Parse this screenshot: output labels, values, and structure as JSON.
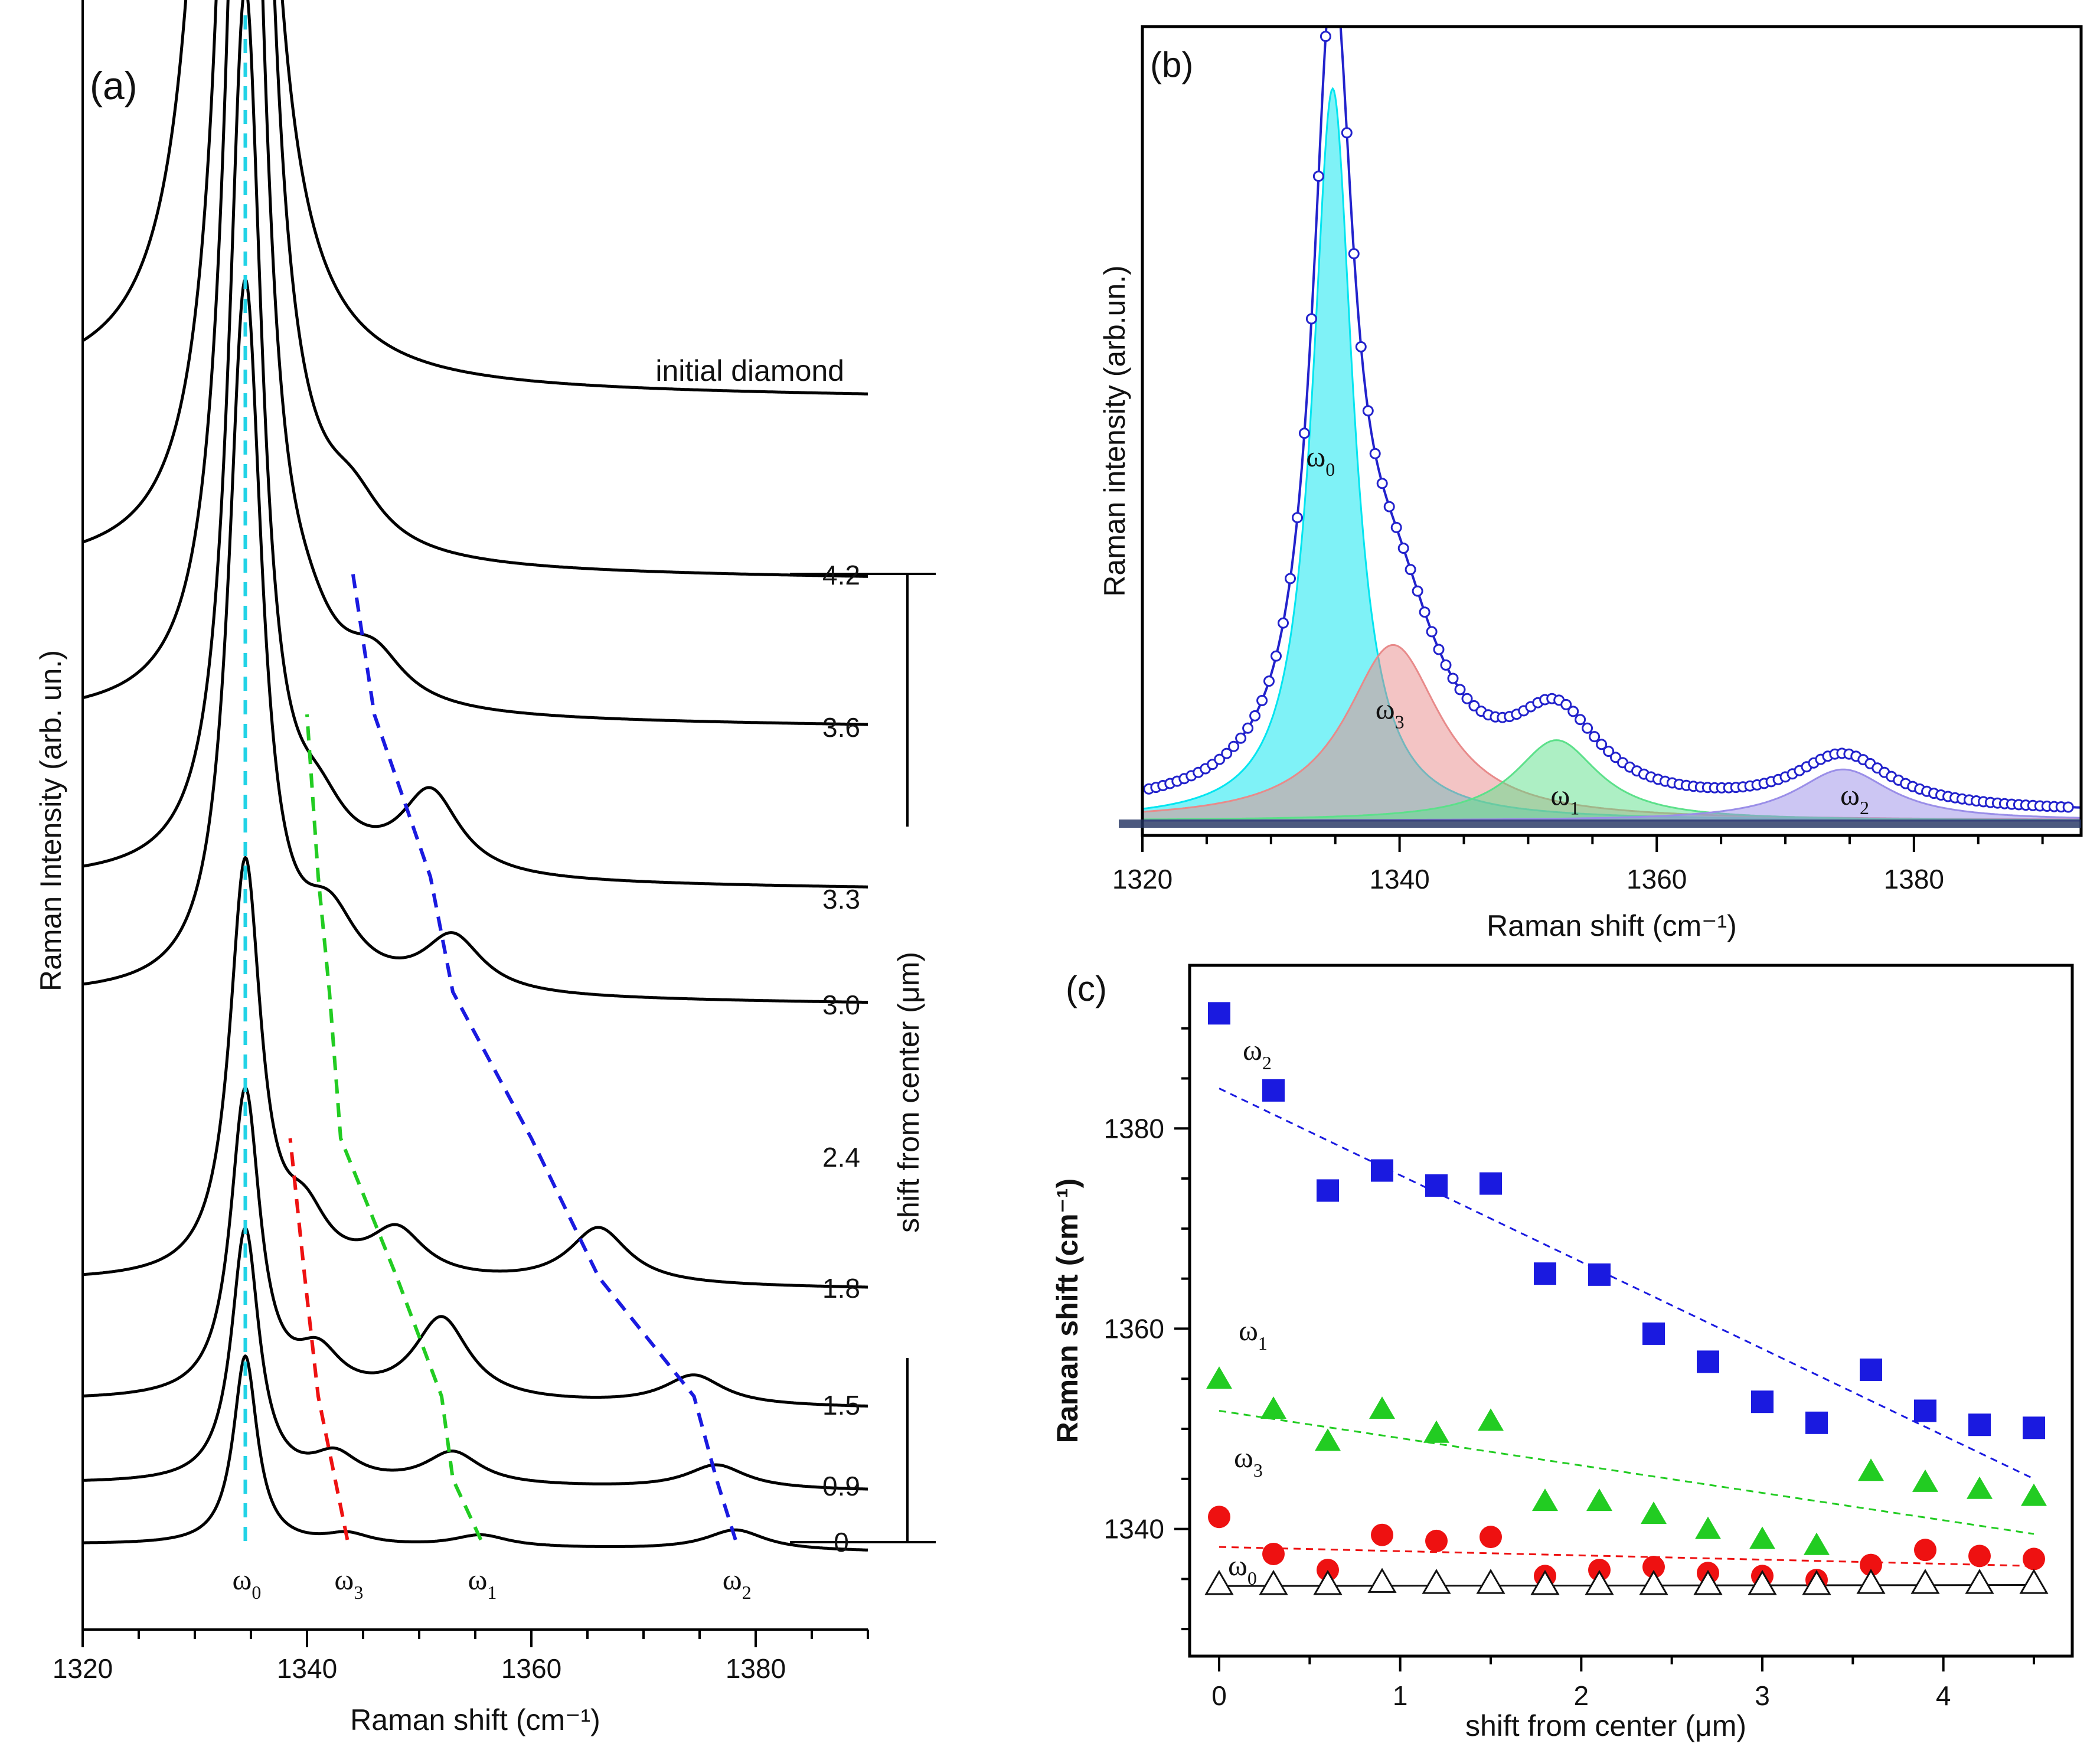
{
  "chart_data": [
    {
      "panel": "a",
      "type": "line",
      "label": "(a)",
      "xlabel": "Raman shift (cm⁻¹)",
      "ylabel": "Raman Intensity (arb. un.)",
      "xlim": [
        1320,
        1390
      ],
      "xticks": [
        1320,
        1340,
        1360,
        1380
      ],
      "right_axis_label": "shift from center (μm)",
      "reference_spectrum_label": "initial diamond",
      "peak_labels": [
        "ω0",
        "ω3",
        "ω1",
        "ω2"
      ],
      "series": [
        {
          "name": "0",
          "omega0": 1334.5,
          "omega3": 1343.6,
          "omega1": 1355.5,
          "omega2": 1378.2
        },
        {
          "name": "0.9",
          "omega0": 1334.5,
          "omega3": 1342.5,
          "omega1": 1353.0,
          "omega2": 1376.5
        },
        {
          "name": "1.5",
          "omega0": 1334.5,
          "omega3": 1341.0,
          "omega1": 1352.0,
          "omega2": 1374.5
        },
        {
          "name": "1.8",
          "omega0": 1334.5,
          "omega3": 1339.8,
          "omega1": 1348.0,
          "omega2": 1366.0
        },
        {
          "name": "2.4",
          "omega0": 1334.5,
          "omega3": 1338.5,
          "omega1": 1343.0,
          "omega2": 1360.0
        },
        {
          "name": "3.0",
          "omega0": 1334.5,
          "omega1": 1342.0,
          "omega2": 1353.0
        },
        {
          "name": "3.3",
          "omega0": 1334.5,
          "omega1": 1341.0,
          "omega2": 1351.0
        },
        {
          "name": "3.6",
          "omega0": 1334.5,
          "omega1": 1340.0,
          "omega2": 1346.0
        },
        {
          "name": "4.2",
          "omega0": 1334.5,
          "omega2": 1344.0
        },
        {
          "name": "initial diamond",
          "omega0": 1333.5
        }
      ]
    },
    {
      "panel": "b",
      "type": "area",
      "label": "(b)",
      "xlabel": "Raman shift (cm⁻¹)",
      "ylabel": "Raman intensity (arb.un.)",
      "xlim": [
        1320,
        1393
      ],
      "xticks": [
        1320,
        1340,
        1360,
        1380
      ],
      "components": [
        {
          "name": "ω0",
          "center": 1334.8,
          "height": 1.0,
          "width": 1.9,
          "color": "#00e5f0"
        },
        {
          "name": "ω3",
          "center": 1339.5,
          "height": 0.24,
          "width": 4.5,
          "color": "#e88a8a"
        },
        {
          "name": "ω1",
          "center": 1352.2,
          "height": 0.11,
          "width": 4.0,
          "color": "#5ce08a"
        },
        {
          "name": "ω2",
          "center": 1374.5,
          "height": 0.07,
          "width": 4.5,
          "color": "#9a8ee8"
        }
      ]
    },
    {
      "panel": "c",
      "type": "scatter",
      "label": "(c)",
      "xlabel": "shift from center (μm)",
      "ylabel": "Raman shift (cm⁻¹)",
      "xlim": [
        -0.2,
        4.7
      ],
      "ylim": [
        1327,
        1396
      ],
      "xticks": [
        0,
        1,
        2,
        3,
        4
      ],
      "yticks": [
        1340,
        1360,
        1380
      ],
      "x": [
        0,
        0.3,
        0.6,
        0.9,
        1.2,
        1.5,
        1.8,
        2.1,
        2.4,
        2.7,
        3.0,
        3.3,
        3.6,
        3.9,
        4.2,
        4.5
      ],
      "series": [
        {
          "name": "ω2",
          "marker": "square",
          "color": "#1a1ae0",
          "values": [
            1391.5,
            1383.8,
            1373.8,
            1375.8,
            1374.3,
            1374.5,
            1365.5,
            1365.4,
            1359.5,
            1356.7,
            1352.7,
            1350.6,
            1355.9,
            1351.8,
            1350.4,
            1350.1
          ],
          "trend": [
            1384,
            1345
          ]
        },
        {
          "name": "ω1",
          "marker": "triangle",
          "color": "#22cc22",
          "values": [
            1355.0,
            1352.0,
            1348.8,
            1352.0,
            1349.6,
            1350.8,
            1342.8,
            1342.8,
            1341.5,
            1340.0,
            1339.0,
            1338.4,
            1345.8,
            1344.7,
            1344.0,
            1343.3
          ],
          "trend": [
            1351.8,
            1339.5
          ]
        },
        {
          "name": "ω3",
          "marker": "circle",
          "color": "#ee1111",
          "values": [
            1341.2,
            1337.5,
            1335.9,
            1339.4,
            1338.8,
            1339.2,
            1335.3,
            1335.9,
            1336.2,
            1335.6,
            1335.3,
            1334.9,
            1336.4,
            1337.9,
            1337.3,
            1337.0
          ],
          "trend": [
            1338.2,
            1336.3
          ]
        },
        {
          "name": "ω0",
          "marker": "open-triangle",
          "color": "#111111",
          "values": [
            1334.5,
            1334.5,
            1334.5,
            1334.7,
            1334.6,
            1334.6,
            1334.5,
            1334.5,
            1334.5,
            1334.5,
            1334.5,
            1334.5,
            1334.6,
            1334.6,
            1334.6,
            1334.6
          ],
          "trend": [
            1334.3,
            1334.4
          ]
        }
      ]
    }
  ],
  "colors": {
    "omega0": "#22d3e6",
    "omega1": "#22cc22",
    "omega2": "#1a1ae0",
    "omega3": "#ee1111",
    "spectrum": "#000000",
    "b_data": "#2222cc"
  }
}
